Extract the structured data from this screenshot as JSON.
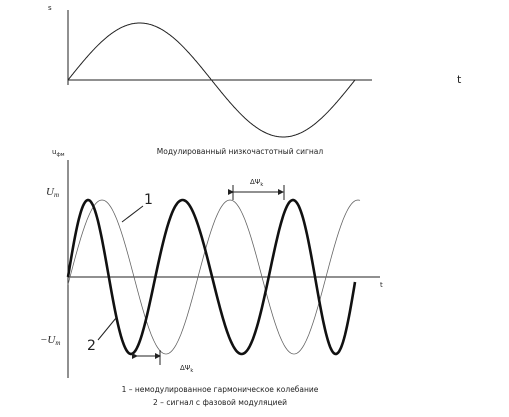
{
  "top_plot": {
    "y_label": "s",
    "x_label": "t",
    "caption": "Модулированный низкочастотный сигнал"
  },
  "bottom_plot": {
    "y_label": {
      "main": "u",
      "sub": "фм"
    },
    "x_label": "t",
    "amp_pos": {
      "main": "U",
      "sub": "m"
    },
    "amp_neg": {
      "main": "−U",
      "sub": "m"
    },
    "curve_1": "1",
    "curve_2": "2",
    "phase_top": {
      "main": "ΔΨ",
      "sub": "k"
    },
    "phase_bottom": {
      "main": "ΔΨ",
      "sub": "k"
    }
  },
  "legend": [
    "1 – немодулированное гармоническое колебание",
    "2 – сигнал с фазовой модуляцией"
  ]
}
